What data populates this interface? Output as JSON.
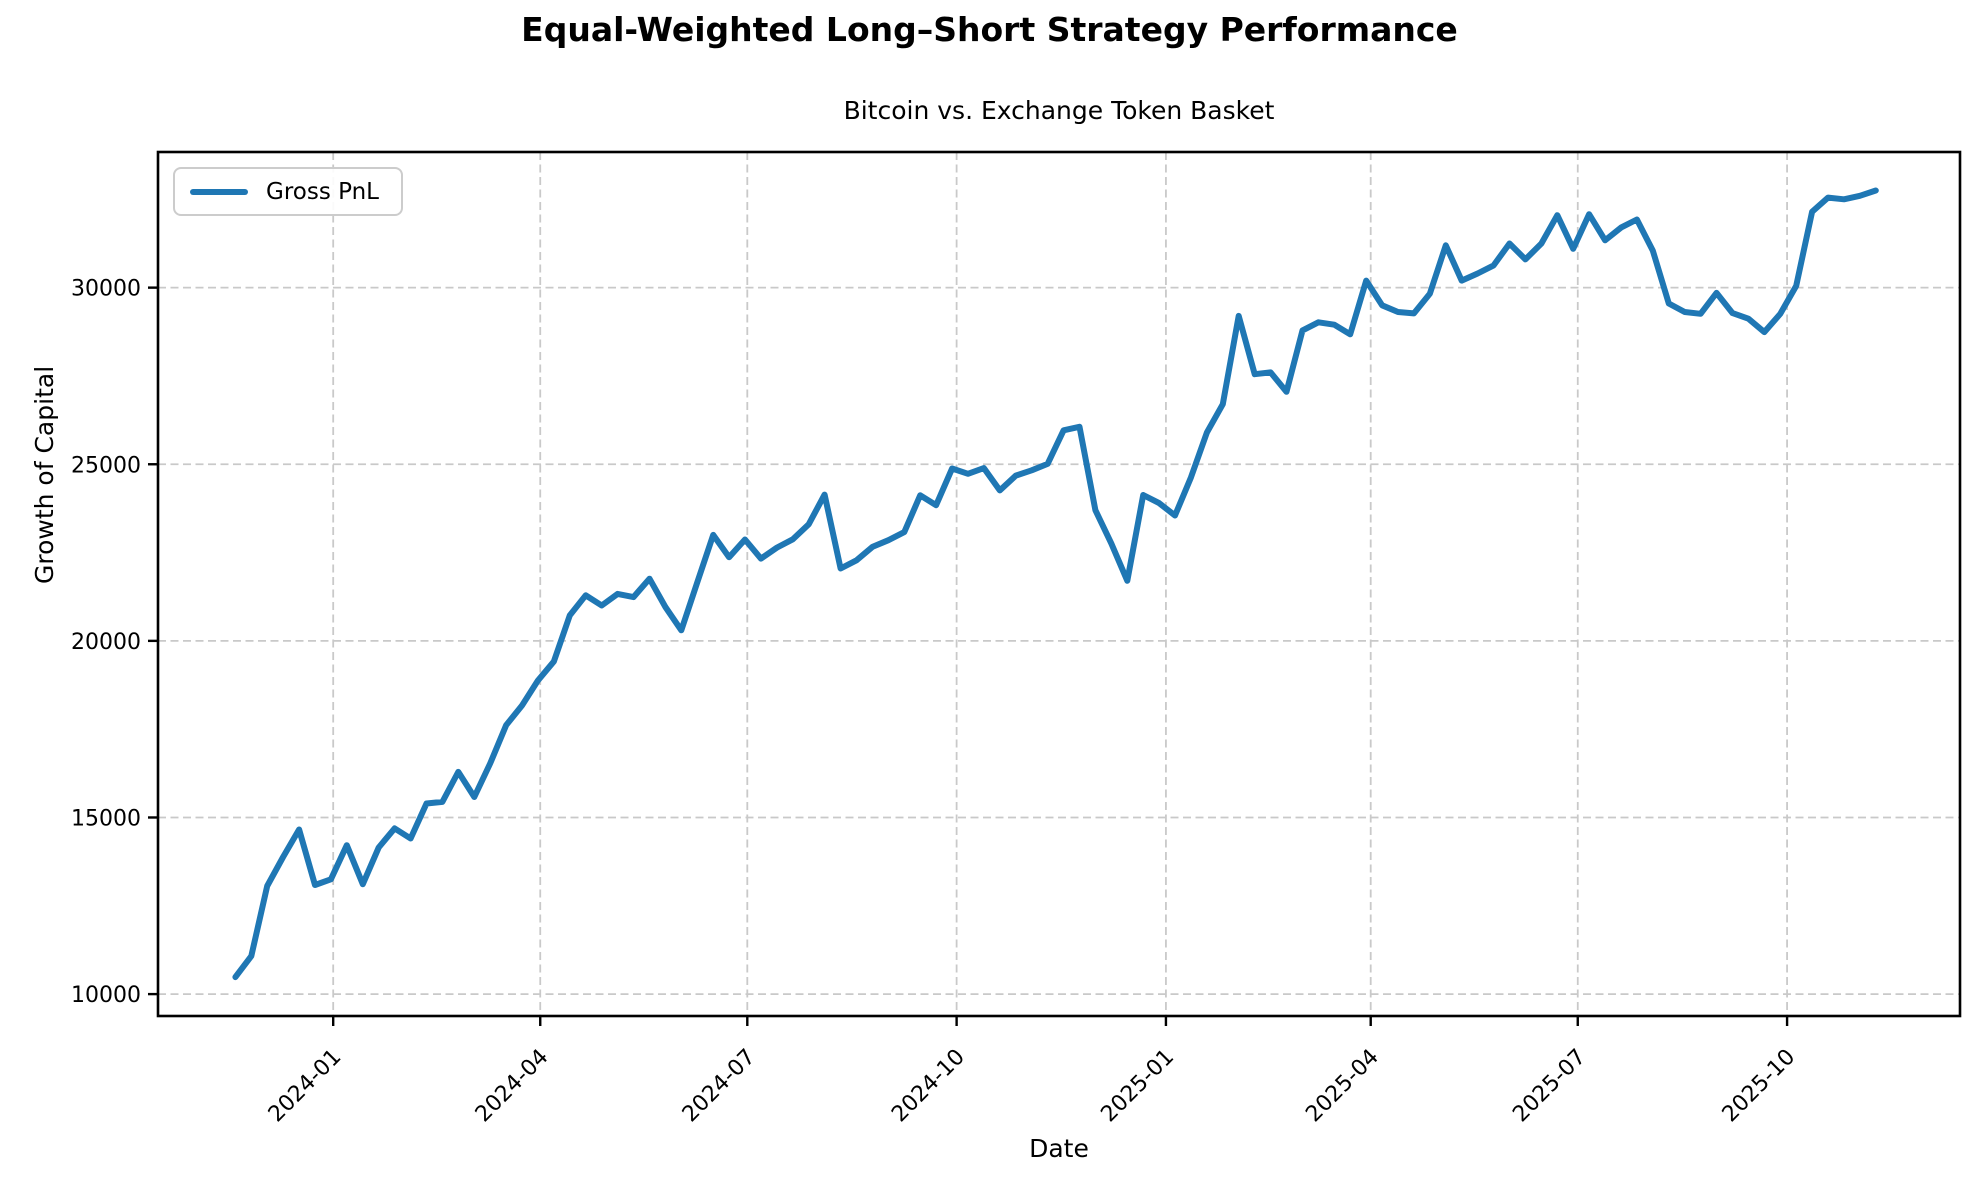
{
  "header": {
    "title": "Equal-Weighted Long–Short Strategy Performance",
    "subtitle": "Bitcoin vs. Exchange Token Basket"
  },
  "legend": {
    "label": "Gross PnL"
  },
  "colors": {
    "line": "#1f77b4",
    "grid": "#c9c9c9",
    "axis": "#000000",
    "legend_border": "#cccccc",
    "background": "#ffffff"
  },
  "chart_data": {
    "type": "line",
    "title": "Equal-Weighted Long–Short Strategy Performance",
    "subtitle": "Bitcoin vs. Exchange Token Basket",
    "xlabel": "Date",
    "ylabel": "Growth of Capital",
    "grid": true,
    "grid_style": "dashed",
    "legend_position": "upper left",
    "ylim": [
      9380,
      33840
    ],
    "xlim": [
      "2023-10-16",
      "2025-12-16"
    ],
    "y_ticks": [
      10000,
      15000,
      20000,
      25000,
      30000
    ],
    "x_ticks": [
      {
        "label": "2024-01",
        "date": "2024-01-01"
      },
      {
        "label": "2024-04",
        "date": "2024-04-01"
      },
      {
        "label": "2024-07",
        "date": "2024-07-01"
      },
      {
        "label": "2024-10",
        "date": "2024-10-01"
      },
      {
        "label": "2025-01",
        "date": "2025-01-01"
      },
      {
        "label": "2025-04",
        "date": "2025-04-01"
      },
      {
        "label": "2025-07",
        "date": "2025-07-01"
      },
      {
        "label": "2025-10",
        "date": "2025-10-01"
      }
    ],
    "series": [
      {
        "name": "Gross PnL",
        "color": "#1f77b4",
        "x": [
          "2023-11-19",
          "2023-11-26",
          "2023-12-03",
          "2023-12-10",
          "2023-12-17",
          "2023-12-24",
          "2023-12-31",
          "2024-01-07",
          "2024-01-14",
          "2024-01-21",
          "2024-01-28",
          "2024-02-04",
          "2024-02-11",
          "2024-02-18",
          "2024-02-25",
          "2024-03-03",
          "2024-03-10",
          "2024-03-17",
          "2024-03-24",
          "2024-03-31",
          "2024-04-07",
          "2024-04-14",
          "2024-04-21",
          "2024-04-28",
          "2024-05-05",
          "2024-05-12",
          "2024-05-19",
          "2024-05-26",
          "2024-06-02",
          "2024-06-09",
          "2024-06-16",
          "2024-06-23",
          "2024-06-30",
          "2024-07-07",
          "2024-07-14",
          "2024-07-21",
          "2024-07-28",
          "2024-08-04",
          "2024-08-11",
          "2024-08-18",
          "2024-08-25",
          "2024-09-01",
          "2024-09-08",
          "2024-09-15",
          "2024-09-22",
          "2024-09-29",
          "2024-10-06",
          "2024-10-13",
          "2024-10-20",
          "2024-10-27",
          "2024-11-03",
          "2024-11-10",
          "2024-11-17",
          "2024-11-24",
          "2024-12-01",
          "2024-12-08",
          "2024-12-15",
          "2024-12-22",
          "2024-12-29",
          "2025-01-05",
          "2025-01-12",
          "2025-01-19",
          "2025-01-26",
          "2025-02-02",
          "2025-02-09",
          "2025-02-16",
          "2025-02-23",
          "2025-03-02",
          "2025-03-09",
          "2025-03-16",
          "2025-03-23",
          "2025-03-30",
          "2025-04-06",
          "2025-04-13",
          "2025-04-20",
          "2025-04-27",
          "2025-05-04",
          "2025-05-11",
          "2025-05-18",
          "2025-05-25",
          "2025-06-01",
          "2025-06-08",
          "2025-06-15",
          "2025-06-22",
          "2025-06-29",
          "2025-07-06",
          "2025-07-13",
          "2025-07-20",
          "2025-07-27",
          "2025-08-03",
          "2025-08-10",
          "2025-08-17",
          "2025-08-24",
          "2025-08-31",
          "2025-09-07",
          "2025-09-14",
          "2025-09-21",
          "2025-09-28",
          "2025-10-05",
          "2025-10-12",
          "2025-10-19",
          "2025-10-26",
          "2025-11-02",
          "2025-11-09"
        ],
        "values": [
          10480,
          11075,
          13060,
          13880,
          14660,
          13090,
          13250,
          14215,
          13110,
          14150,
          14690,
          14405,
          15395,
          15440,
          16290,
          15580,
          16530,
          17610,
          18170,
          18880,
          19420,
          20720,
          21290,
          21000,
          21330,
          21240,
          21760,
          20960,
          20300,
          21650,
          23000,
          22370,
          22870,
          22330,
          22640,
          22875,
          23300,
          24140,
          22050,
          22280,
          22660,
          22850,
          23080,
          24120,
          23840,
          24880,
          24730,
          24890,
          24260,
          24680,
          24830,
          25010,
          25960,
          26060,
          23700,
          22760,
          21700,
          24130,
          23900,
          23550,
          24630,
          25900,
          26700,
          29200,
          27550,
          27600,
          27050,
          28790,
          29020,
          28950,
          28680,
          30200,
          29500,
          29310,
          29270,
          29830,
          31200,
          30200,
          30400,
          30630,
          31250,
          30800,
          31250,
          32050,
          31100,
          32080,
          31340,
          31700,
          31930,
          31050,
          29550,
          29310,
          29260,
          29850,
          29280,
          29120,
          28740,
          29260,
          30050,
          32150,
          32550,
          32500,
          32600,
          32750
        ]
      }
    ]
  }
}
